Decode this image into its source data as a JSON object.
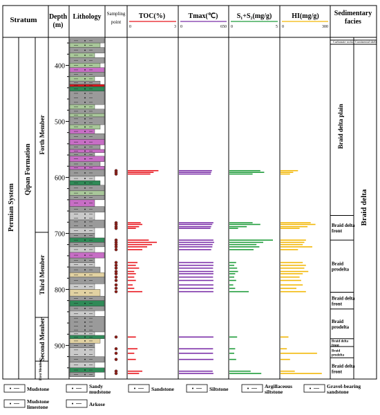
{
  "headers": {
    "stratum": "Stratum",
    "depth": "Depth\n(m)",
    "lithology": "Lithology",
    "sampling": "Sampling\npoint",
    "toc": "TOC(%)",
    "tmax": "Tmax(℃)",
    "s1s2": "S₁+S₂(mg/g)",
    "hi": "HI(mg/g)",
    "facies": "Sedimentary\nfacies"
  },
  "stratum": {
    "system": "Permian System",
    "formation": "Qipan Formation",
    "members": [
      "Forth Member",
      "Third Member",
      "Second Member",
      "First Member"
    ]
  },
  "facies": {
    "subheaders": [
      "Carbonate rocks",
      "Continental shelf"
    ],
    "big_label": "Braid delta",
    "zones": [
      "Braid delta plain",
      "Braid delta front",
      "Braid prodelta",
      "Braid delta front",
      "Braid prodelta",
      "Braid delta front",
      "Braid prodelta",
      "Braid delta front"
    ]
  },
  "colors": {
    "toc": "#e8141c",
    "tmax": "#7b2fa8",
    "s1s2": "#1f9c3a",
    "hi": "#f2b705",
    "green": "#2f8a57",
    "purple": "#c76ec5",
    "grey": "#9a9a9a",
    "tan": "#e2d2a2",
    "light_green": "#a9c89a"
  },
  "legend": [
    {
      "label": "Mudstone",
      "icon": "mudstone-swatch"
    },
    {
      "label": "Sandy mudstone",
      "icon": "sandy-mudstone-swatch"
    },
    {
      "label": "Sandstone",
      "icon": "sandstone-swatch"
    },
    {
      "label": "Siltstone",
      "icon": "siltstone-swatch"
    },
    {
      "label": "Argillaceous siltstone",
      "icon": "argillaceous-siltstone-swatch"
    },
    {
      "label": "Gravel-bearing sandstone",
      "icon": "gravel-sandstone-swatch"
    },
    {
      "label": "Mudstone limestone",
      "icon": "mudstone-limestone-swatch"
    },
    {
      "label": "Arkose",
      "icon": "arkose-swatch"
    }
  ],
  "chart_data": {
    "type": "bar",
    "orientation": "horizontal",
    "y_axis": {
      "label": "Depth (m)",
      "range": [
        350,
        960
      ],
      "ticks": [
        400,
        500,
        600,
        700,
        800,
        900
      ]
    },
    "tracks": [
      {
        "name": "TOC(%)",
        "range": [
          0,
          3
        ],
        "color_key": "toc"
      },
      {
        "name": "Tmax(℃)",
        "range": [
          0,
          650
        ],
        "color_key": "tmax"
      },
      {
        "name": "S₁+S₂(mg/g)",
        "range": [
          0,
          5
        ],
        "color_key": "s1s2"
      },
      {
        "name": "HI(mg/g)",
        "range": [
          0,
          300
        ],
        "color_key": "hi"
      }
    ],
    "samples": [
      {
        "depth": 588,
        "toc": 1.9,
        "tmax": 450,
        "s1s2": 3.2,
        "hi": 110
      },
      {
        "depth": 591,
        "toc": 1.6,
        "tmax": 440,
        "s1s2": 3.6,
        "hi": 80
      },
      {
        "depth": 594,
        "toc": 1.4,
        "tmax": 435,
        "s1s2": 2.4,
        "hi": 60
      },
      {
        "depth": 681,
        "toc": 0.8,
        "tmax": 470,
        "s1s2": 2.4,
        "hi": 190
      },
      {
        "depth": 684,
        "toc": 0.9,
        "tmax": 455,
        "s1s2": 3.2,
        "hi": 220
      },
      {
        "depth": 688,
        "toc": 0.7,
        "tmax": 440,
        "s1s2": 1.8,
        "hi": 170
      },
      {
        "depth": 691,
        "toc": 0.5,
        "tmax": 430,
        "s1s2": 0.9,
        "hi": 120
      },
      {
        "depth": 712,
        "toc": 1.3,
        "tmax": 470,
        "s1s2": 4.5,
        "hi": 160
      },
      {
        "depth": 716,
        "toc": 1.8,
        "tmax": 480,
        "s1s2": 3.5,
        "hi": 150
      },
      {
        "depth": 720,
        "toc": 1.5,
        "tmax": 460,
        "s1s2": 2.8,
        "hi": 140
      },
      {
        "depth": 724,
        "toc": 1.2,
        "tmax": 455,
        "s1s2": 3.1,
        "hi": 200
      },
      {
        "depth": 729,
        "toc": 0.9,
        "tmax": 440,
        "s1s2": 2.5,
        "hi": 110
      },
      {
        "depth": 752,
        "toc": 0.6,
        "tmax": 470,
        "s1s2": 0.7,
        "hi": 140
      },
      {
        "depth": 757,
        "toc": 0.5,
        "tmax": 470,
        "s1s2": 0.5,
        "hi": 160
      },
      {
        "depth": 762,
        "toc": 0.7,
        "tmax": 465,
        "s1s2": 0.8,
        "hi": 150
      },
      {
        "depth": 768,
        "toc": 0.4,
        "tmax": 470,
        "s1s2": 0.9,
        "hi": 175
      },
      {
        "depth": 772,
        "toc": 0.5,
        "tmax": 470,
        "s1s2": 0.6,
        "hi": 140
      },
      {
        "depth": 778,
        "toc": 0.4,
        "tmax": 465,
        "s1s2": 0.5,
        "hi": 120
      },
      {
        "depth": 784,
        "toc": 0.5,
        "tmax": 470,
        "s1s2": 0.7,
        "hi": 130
      },
      {
        "depth": 792,
        "toc": 0.3,
        "tmax": 470,
        "s1s2": 0.4,
        "hi": 140
      },
      {
        "depth": 798,
        "toc": 0.4,
        "tmax": 470,
        "s1s2": 0.6,
        "hi": 100
      },
      {
        "depth": 804,
        "toc": 0.9,
        "tmax": 470,
        "s1s2": 2.0,
        "hi": 160
      },
      {
        "depth": 885,
        "toc": 0.5,
        "tmax": 470,
        "s1s2": 0.8,
        "hi": 50
      },
      {
        "depth": 906,
        "toc": 0.6,
        "tmax": 465,
        "s1s2": 0.6,
        "hi": 40
      },
      {
        "depth": 914,
        "toc": 0.4,
        "tmax": 465,
        "s1s2": 0.5,
        "hi": 230
      },
      {
        "depth": 925,
        "toc": 0.5,
        "tmax": 470,
        "s1s2": 0.7,
        "hi": 60
      },
      {
        "depth": 946,
        "toc": 0.9,
        "tmax": 460,
        "s1s2": 2.2,
        "hi": 90
      },
      {
        "depth": 950,
        "toc": 0.7,
        "tmax": 470,
        "s1s2": 3.3,
        "hi": 260
      }
    ]
  }
}
